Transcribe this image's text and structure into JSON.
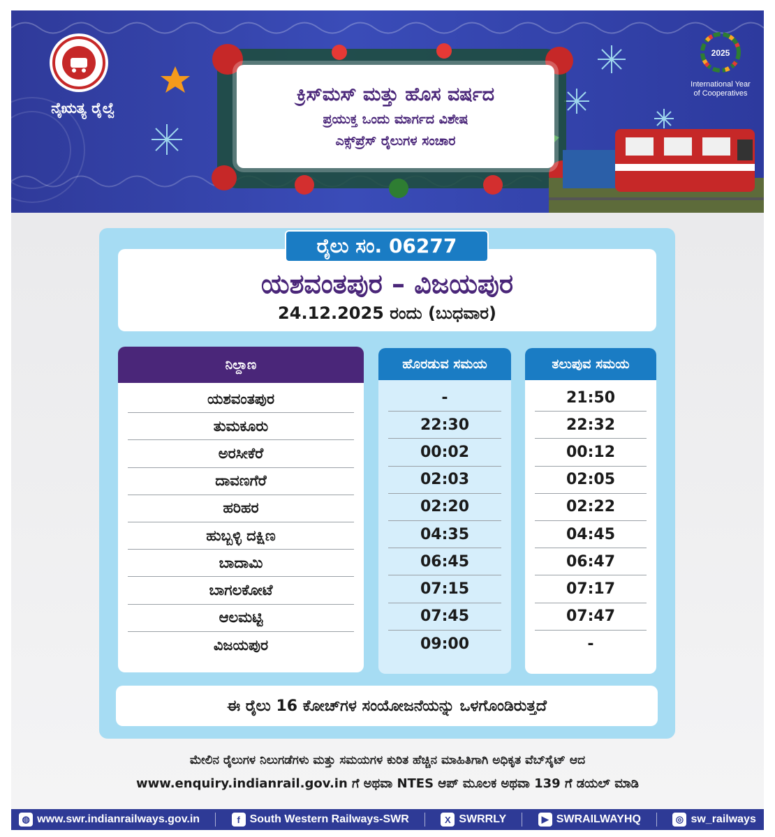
{
  "header": {
    "org_name": "ನೈಋತ್ಯ ರೈಲ್ವೆ",
    "title_line1": "ಕ್ರಿಸ್‌ಮಸ್ ಮತ್ತು ಹೊಸ ವರ್ಷದ",
    "title_line2": "ಪ್ರಯುಕ್ತ ಒಂದು ಮಾರ್ಗದ ವಿಶೇಷ",
    "title_line3": "ಎಕ್ಸ್‌ಪ್ರೆಸ್ ರೈಲುಗಳ  ಸಂಚಾರ",
    "iyc_line1": "International Year",
    "iyc_line2": "of Cooperatives",
    "iyc_year": "2025"
  },
  "train": {
    "number_label": "ರೈಲು ಸಂ. 06277",
    "route": "ಯಶವಂತಪುರ – ವಿಜಯಪುರ",
    "date": "24.12.2025 ರಂದು (ಬುಧವಾರ)"
  },
  "table": {
    "headers": {
      "station": "ನಿಲ್ದಾಣ",
      "departure": "ಹೊರಡುವ ಸಮಯ",
      "arrival": "ತಲುಪುವ ಸಮಯ"
    },
    "rows": [
      {
        "station": "ಯಶವಂತಪುರ",
        "departure": "-",
        "arrival": "21:50"
      },
      {
        "station": "ತುಮಕೂರು",
        "departure": "22:30",
        "arrival": "22:32"
      },
      {
        "station": "ಅರಸೀಕೆರೆ",
        "departure": "00:02",
        "arrival": "00:12"
      },
      {
        "station": "ದಾವಣಗೆರೆ",
        "departure": "02:03",
        "arrival": "02:05"
      },
      {
        "station": "ಹರಿಹರ",
        "departure": "02:20",
        "arrival": "02:22"
      },
      {
        "station": "ಹುಬ್ಬಳ್ಳಿ ದಕ್ಷಿಣ",
        "departure": "04:35",
        "arrival": "04:45"
      },
      {
        "station": "ಬಾದಾಮಿ",
        "departure": "06:45",
        "arrival": "06:47"
      },
      {
        "station": "ಬಾಗಲಕೋಟೆ",
        "departure": "07:15",
        "arrival": "07:17"
      },
      {
        "station": "ಆಲಮಟ್ಟಿ",
        "departure": "07:45",
        "arrival": "07:47"
      },
      {
        "station": "ವಿಜಯಪುರ",
        "departure": "09:00",
        "arrival": "-"
      }
    ]
  },
  "coach_note": "ಈ ರೈಲು 16 ಕೋಚ್‌ಗಳ ಸಂಯೋಜನೆಯನ್ನು ಒಳಗೊಂಡಿರುತ್ತದೆ",
  "info": {
    "line1": "ಮೇಲಿನ ರೈಲುಗಳ ನಿಲುಗಡೆಗಳು ಮತ್ತು ಸಮಯಗಳ ಕುರಿತ ಹೆಚ್ಚಿನ ಮಾಹಿತಿಗಾಗಿ ಅಧಿಕೃತ ವೆಬ್‌ಸೈಟ್ ಆದ",
    "line2": "www.enquiry.indianrail.gov.in ಗೆ ಅಥವಾ NTES ಆಪ್ ಮೂಲಕ ಅಥವಾ 139 ಗೆ ಡಯಲ್ ಮಾಡಿ"
  },
  "footer": {
    "website": "www.swr.indianrailways.gov.in",
    "facebook": "South Western Railways-SWR",
    "x": "SWRRLY",
    "youtube": "SWRAILWAYHQ",
    "instagram": "sw_railways"
  },
  "colors": {
    "banner_blue": "#3a4cb8",
    "title_purple": "#4a2679",
    "accent_blue": "#1a7cc4",
    "panel_light_blue": "#a6dcf3"
  },
  "icons": [
    "indian-railways-logo",
    "iyc-2025-logo",
    "globe-icon",
    "facebook-icon",
    "x-icon",
    "youtube-icon",
    "instagram-icon"
  ]
}
